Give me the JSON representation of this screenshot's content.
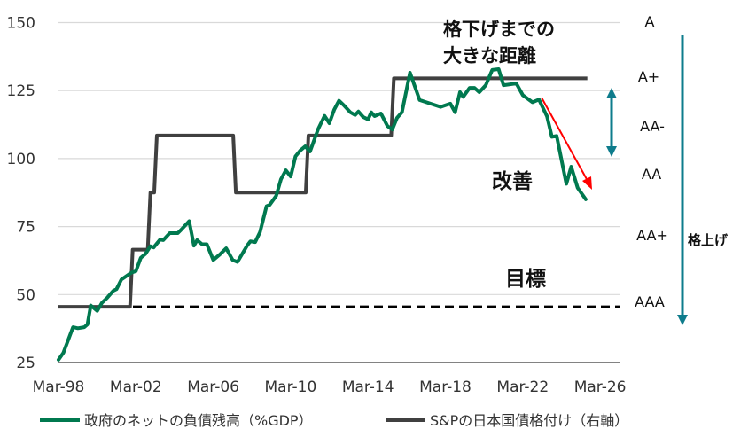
{
  "chart_data": {
    "type": "line",
    "title": "",
    "xlabel": "",
    "ylabel": "",
    "ylim": [
      25,
      150
    ],
    "yticks": [
      "25",
      "50",
      "75",
      "100",
      "125",
      "150"
    ],
    "xticks": [
      "Mar-98",
      "Mar-02",
      "Mar-06",
      "Mar-10",
      "Mar-14",
      "Mar-18",
      "Mar-22",
      "Mar-26"
    ],
    "grid": "horizontal",
    "legend_position": "bottom",
    "right_axis_ticks": [
      "A",
      "A+",
      "AA-",
      "AA",
      "AA+",
      "AAA"
    ],
    "series": [
      {
        "name": "政府のネットの負債残高（%GDP）",
        "color": "#00794F",
        "axis": "left",
        "points": [
          [
            "1998-03",
            26
          ],
          [
            "1998-06",
            28.6
          ],
          [
            "1998-12",
            38
          ],
          [
            "1999-03",
            37.6
          ],
          [
            "1999-07",
            38
          ],
          [
            "1999-09",
            39
          ],
          [
            "1999-11",
            46
          ],
          [
            "2000-03",
            44
          ],
          [
            "2000-06",
            47
          ],
          [
            "2000-09",
            48.7
          ],
          [
            "2001-01",
            51.4
          ],
          [
            "2001-03",
            52
          ],
          [
            "2001-06",
            55.5
          ],
          [
            "2001-12",
            58
          ],
          [
            "2002-03",
            58.6
          ],
          [
            "2002-06",
            63.5
          ],
          [
            "2002-09",
            65
          ],
          [
            "2002-12",
            67.8
          ],
          [
            "2003-02",
            67.3
          ],
          [
            "2003-06",
            70.2
          ],
          [
            "2003-08",
            70
          ],
          [
            "2003-12",
            72.6
          ],
          [
            "2004-05",
            72.6
          ],
          [
            "2004-07",
            73.8
          ],
          [
            "2004-12",
            77
          ],
          [
            "2005-03",
            68
          ],
          [
            "2005-05",
            70
          ],
          [
            "2005-08",
            68.5
          ],
          [
            "2005-11",
            68.5
          ],
          [
            "2006-03",
            62.7
          ],
          [
            "2006-07",
            64.7
          ],
          [
            "2006-11",
            67
          ],
          [
            "2007-03",
            62.7
          ],
          [
            "2007-06",
            62
          ],
          [
            "2007-12",
            68
          ],
          [
            "2008-02",
            69.6
          ],
          [
            "2008-05",
            69.3
          ],
          [
            "2008-08",
            73
          ],
          [
            "2008-12",
            82.5
          ],
          [
            "2009-02",
            83
          ],
          [
            "2009-06",
            86.3
          ],
          [
            "2009-09",
            92.4
          ],
          [
            "2009-12",
            95.7
          ],
          [
            "2010-03",
            93.4
          ],
          [
            "2010-06",
            100.8
          ],
          [
            "2010-09",
            103
          ],
          [
            "2010-12",
            104.5
          ],
          [
            "2011-03",
            102.6
          ],
          [
            "2011-08",
            110.8
          ],
          [
            "2011-12",
            115.7
          ],
          [
            "2012-03",
            113
          ],
          [
            "2012-06",
            118
          ],
          [
            "2012-09",
            121.3
          ],
          [
            "2012-12",
            119.6
          ],
          [
            "2013-04",
            117
          ],
          [
            "2013-07",
            116
          ],
          [
            "2013-09",
            117.3
          ],
          [
            "2013-12",
            115.3
          ],
          [
            "2014-03",
            114.4
          ],
          [
            "2014-05",
            117
          ],
          [
            "2014-07",
            115.6
          ],
          [
            "2014-11",
            116.6
          ],
          [
            "2015-03",
            112
          ],
          [
            "2015-06",
            110.7
          ],
          [
            "2015-09",
            115
          ],
          [
            "2015-12",
            117
          ],
          [
            "2016-05",
            131.6
          ],
          [
            "2016-11",
            121.5
          ],
          [
            "2017-12",
            119
          ],
          [
            "2018-06",
            120.2
          ],
          [
            "2018-09",
            117
          ],
          [
            "2018-12",
            124.4
          ],
          [
            "2019-02",
            122.7
          ],
          [
            "2019-06",
            126
          ],
          [
            "2019-09",
            126
          ],
          [
            "2019-12",
            124.4
          ],
          [
            "2020-04",
            127
          ],
          [
            "2020-08",
            132.6
          ],
          [
            "2020-12",
            132.9
          ],
          [
            "2021-03",
            127
          ],
          [
            "2021-11",
            127.6
          ],
          [
            "2022-03",
            123.3
          ],
          [
            "2022-09",
            120.7
          ],
          [
            "2023-01",
            121.7
          ],
          [
            "2023-06",
            115.5
          ],
          [
            "2023-09",
            108
          ],
          [
            "2023-12",
            108.3
          ],
          [
            "2024-06",
            90.7
          ],
          [
            "2024-09",
            97
          ],
          [
            "2025-01",
            89.2
          ],
          [
            "2025-06",
            85
          ]
        ]
      },
      {
        "name": "S&Pの日本国債格付け（右軸）",
        "color": "#404040",
        "axis": "right",
        "step": true,
        "points": [
          [
            "1998-03",
            "AAA"
          ],
          [
            "2002-01",
            "AA+"
          ],
          [
            "2002-12",
            "AA"
          ],
          [
            "2003-04",
            "AA-"
          ],
          [
            "2007-05",
            "AA"
          ],
          [
            "2011-02",
            "AA-"
          ],
          [
            "2015-07",
            "A+"
          ],
          [
            "2025-07",
            "A+"
          ]
        ]
      }
    ],
    "reference_line": {
      "label": "目標",
      "rating": "AAA",
      "style": "dashed",
      "color": "#000000"
    },
    "annotations": {
      "gap_line1": "格下げまでの",
      "gap_line2": "大きな距離",
      "improve": "改善",
      "target": "目標",
      "upgrade": "格上げ"
    },
    "annotation_colors": {
      "arrow_teal": "#0E7C8C",
      "arrow_red": "#FF0000"
    }
  }
}
